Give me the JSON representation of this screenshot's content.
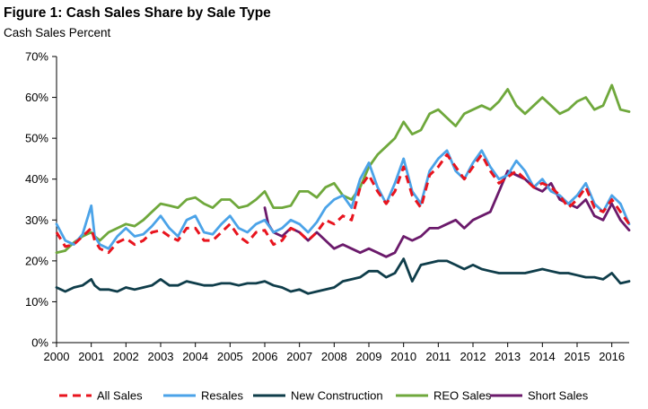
{
  "title": "Figure 1: Cash Sales Share by Sale Type",
  "subtitle": "Cash Sales Percent",
  "chart_data": {
    "type": "line",
    "title": "Figure 1: Cash Sales Share by Sale Type",
    "subtitle": "Cash Sales Percent",
    "xlabel": "",
    "ylabel": "",
    "xlim": [
      2000,
      2016.5
    ],
    "ylim": [
      0,
      70
    ],
    "y_ticks": [
      "0%",
      "10%",
      "20%",
      "30%",
      "40%",
      "50%",
      "60%",
      "70%"
    ],
    "x_ticks": [
      "2000",
      "2001",
      "2002",
      "2003",
      "2004",
      "2005",
      "2006",
      "2007",
      "2008",
      "2009",
      "2010",
      "2011",
      "2012",
      "2013",
      "2014",
      "2015",
      "2016"
    ],
    "grid": false,
    "legend_position": "bottom",
    "series": [
      {
        "name": "All Sales",
        "color": "#e8141e",
        "dash": true,
        "x": [
          2000.0,
          2000.25,
          2000.5,
          2000.75,
          2001.0,
          2001.1,
          2001.25,
          2001.5,
          2001.75,
          2002.0,
          2002.25,
          2002.5,
          2002.75,
          2003.0,
          2003.25,
          2003.5,
          2003.75,
          2004.0,
          2004.25,
          2004.5,
          2004.75,
          2005.0,
          2005.25,
          2005.5,
          2005.75,
          2006.0,
          2006.25,
          2006.5,
          2006.75,
          2007.0,
          2007.25,
          2007.5,
          2007.75,
          2008.0,
          2008.25,
          2008.5,
          2008.75,
          2009.0,
          2009.25,
          2009.5,
          2009.75,
          2010.0,
          2010.25,
          2010.5,
          2010.75,
          2011.0,
          2011.25,
          2011.5,
          2011.75,
          2012.0,
          2012.25,
          2012.5,
          2012.75,
          2013.0,
          2013.25,
          2013.5,
          2013.75,
          2014.0,
          2014.25,
          2014.5,
          2014.75,
          2015.0,
          2015.25,
          2015.5,
          2015.75,
          2016.0,
          2016.25,
          2016.5
        ],
        "values": [
          27,
          23.5,
          24,
          26,
          28,
          25,
          23,
          22,
          24.5,
          25.5,
          24,
          25,
          27,
          27.5,
          26,
          25,
          28,
          28,
          25,
          25,
          27,
          29,
          26,
          24.5,
          27,
          27.5,
          24,
          25,
          28,
          27,
          25,
          27,
          30,
          29,
          31,
          30,
          38,
          41,
          37,
          34,
          37,
          43,
          36,
          33,
          41,
          43,
          46,
          43,
          40,
          43,
          46,
          42,
          39,
          40.5,
          42,
          40,
          38,
          39,
          38,
          36,
          33,
          35,
          38,
          33,
          32,
          35,
          32,
          29
        ]
      },
      {
        "name": "Resales",
        "color": "#4ba3e8",
        "dash": false,
        "x": [
          2000.0,
          2000.25,
          2000.5,
          2000.75,
          2001.0,
          2001.1,
          2001.25,
          2001.5,
          2001.75,
          2002.0,
          2002.25,
          2002.5,
          2002.75,
          2003.0,
          2003.25,
          2003.5,
          2003.75,
          2004.0,
          2004.25,
          2004.5,
          2004.75,
          2005.0,
          2005.25,
          2005.5,
          2005.75,
          2006.0,
          2006.25,
          2006.5,
          2006.75,
          2007.0,
          2007.25,
          2007.5,
          2007.75,
          2008.0,
          2008.25,
          2008.5,
          2008.75,
          2009.0,
          2009.25,
          2009.5,
          2009.75,
          2010.0,
          2010.25,
          2010.5,
          2010.75,
          2011.0,
          2011.25,
          2011.5,
          2011.75,
          2012.0,
          2012.25,
          2012.5,
          2012.75,
          2013.0,
          2013.25,
          2013.5,
          2013.75,
          2014.0,
          2014.25,
          2014.5,
          2014.75,
          2015.0,
          2015.25,
          2015.5,
          2015.75,
          2016.0,
          2016.25,
          2016.5
        ],
        "values": [
          29,
          25,
          24,
          26.5,
          33.5,
          26,
          24,
          23,
          26,
          28,
          26,
          26.5,
          28.5,
          31,
          28,
          26,
          30,
          31,
          27,
          26.5,
          29,
          31,
          28,
          27,
          29,
          30,
          27,
          28,
          30,
          29,
          27,
          29.5,
          33,
          35,
          36,
          33,
          40,
          44,
          38,
          34,
          39,
          45,
          37,
          34,
          42,
          45,
          47,
          42,
          40,
          44,
          47,
          43,
          40,
          41,
          44.5,
          42,
          38,
          40,
          37,
          36,
          34,
          36,
          39,
          34,
          32,
          36,
          34,
          29
        ]
      },
      {
        "name": "New Construction",
        "color": "#0f3d4a",
        "dash": false,
        "x": [
          2000.0,
          2000.25,
          2000.5,
          2000.75,
          2001.0,
          2001.1,
          2001.25,
          2001.5,
          2001.75,
          2002.0,
          2002.25,
          2002.5,
          2002.75,
          2003.0,
          2003.25,
          2003.5,
          2003.75,
          2004.0,
          2004.25,
          2004.5,
          2004.75,
          2005.0,
          2005.25,
          2005.5,
          2005.75,
          2006.0,
          2006.25,
          2006.5,
          2006.75,
          2007.0,
          2007.25,
          2007.5,
          2007.75,
          2008.0,
          2008.25,
          2008.5,
          2008.75,
          2009.0,
          2009.25,
          2009.5,
          2009.75,
          2010.0,
          2010.25,
          2010.5,
          2010.75,
          2011.0,
          2011.25,
          2011.5,
          2011.75,
          2012.0,
          2012.25,
          2012.5,
          2012.75,
          2013.0,
          2013.25,
          2013.5,
          2013.75,
          2014.0,
          2014.25,
          2014.5,
          2014.75,
          2015.0,
          2015.25,
          2015.5,
          2015.75,
          2016.0,
          2016.25,
          2016.5
        ],
        "values": [
          13.5,
          12.5,
          13.5,
          14,
          15.5,
          14,
          13,
          13,
          12.5,
          13.5,
          13,
          13.5,
          14,
          15.5,
          14,
          14,
          15,
          14.5,
          14,
          14,
          14.5,
          14.5,
          14,
          14.5,
          14.5,
          15,
          14,
          13.5,
          12.5,
          13,
          12,
          12.5,
          13,
          13.5,
          15,
          15.5,
          16,
          17.5,
          17.5,
          16,
          17,
          20.5,
          15,
          19,
          19.5,
          20,
          20,
          19,
          18,
          19,
          18,
          17.5,
          17,
          17,
          17,
          17,
          17.5,
          18,
          17.5,
          17,
          17,
          16.5,
          16,
          16,
          15.5,
          17,
          14.5,
          15
        ]
      },
      {
        "name": "REO Sales",
        "color": "#6fa83c",
        "dash": false,
        "x": [
          2000.0,
          2000.25,
          2000.5,
          2000.75,
          2001.0,
          2001.1,
          2001.25,
          2001.5,
          2001.75,
          2002.0,
          2002.25,
          2002.5,
          2002.75,
          2003.0,
          2003.25,
          2003.5,
          2003.75,
          2004.0,
          2004.25,
          2004.5,
          2004.75,
          2005.0,
          2005.25,
          2005.5,
          2005.75,
          2006.0,
          2006.25,
          2006.5,
          2006.75,
          2007.0,
          2007.25,
          2007.5,
          2007.75,
          2008.0,
          2008.25,
          2008.5,
          2008.75,
          2009.0,
          2009.25,
          2009.5,
          2009.75,
          2010.0,
          2010.25,
          2010.5,
          2010.75,
          2011.0,
          2011.25,
          2011.5,
          2011.75,
          2012.0,
          2012.25,
          2012.5,
          2012.75,
          2013.0,
          2013.25,
          2013.5,
          2013.75,
          2014.0,
          2014.25,
          2014.5,
          2014.75,
          2015.0,
          2015.25,
          2015.5,
          2015.75,
          2016.0,
          2016.25,
          2016.5
        ],
        "values": [
          22,
          22.5,
          24.5,
          26,
          27,
          26,
          25,
          27,
          28,
          29,
          28.5,
          30,
          32,
          34,
          33.5,
          33,
          35,
          35.5,
          34,
          33,
          35,
          35,
          33,
          33.5,
          35,
          37,
          33,
          33,
          33.5,
          37,
          37,
          35.5,
          38,
          39,
          36,
          35,
          38,
          43,
          46,
          48,
          50,
          54,
          51,
          52,
          56,
          57,
          55,
          53,
          56,
          57,
          58,
          57,
          59,
          62,
          58,
          56,
          58,
          60,
          58,
          56,
          57,
          59,
          60,
          57,
          58,
          63,
          57,
          56.5
        ]
      },
      {
        "name": "Short Sales",
        "color": "#6b1a6b",
        "dash": false,
        "x": [
          2006.0,
          2006.1,
          2006.25,
          2006.5,
          2006.75,
          2007.0,
          2007.25,
          2007.5,
          2007.75,
          2008.0,
          2008.25,
          2008.5,
          2008.75,
          2009.0,
          2009.25,
          2009.5,
          2009.75,
          2010.0,
          2010.25,
          2010.5,
          2010.75,
          2011.0,
          2011.25,
          2011.5,
          2011.75,
          2012.0,
          2012.25,
          2012.5,
          2012.75,
          2013.0,
          2013.25,
          2013.5,
          2013.75,
          2014.0,
          2014.25,
          2014.5,
          2014.75,
          2015.0,
          2015.25,
          2015.5,
          2015.75,
          2016.0,
          2016.25,
          2016.5
        ],
        "values": [
          33,
          29,
          27,
          26,
          28,
          27,
          25,
          27,
          25,
          23,
          24,
          23,
          22,
          23,
          22,
          21,
          22,
          26,
          25,
          26,
          28,
          28,
          29,
          30,
          28,
          30,
          31,
          32,
          37,
          42,
          41,
          40,
          38,
          37,
          39,
          35,
          34,
          33,
          35,
          31,
          30,
          34,
          30,
          27.5
        ]
      }
    ]
  }
}
